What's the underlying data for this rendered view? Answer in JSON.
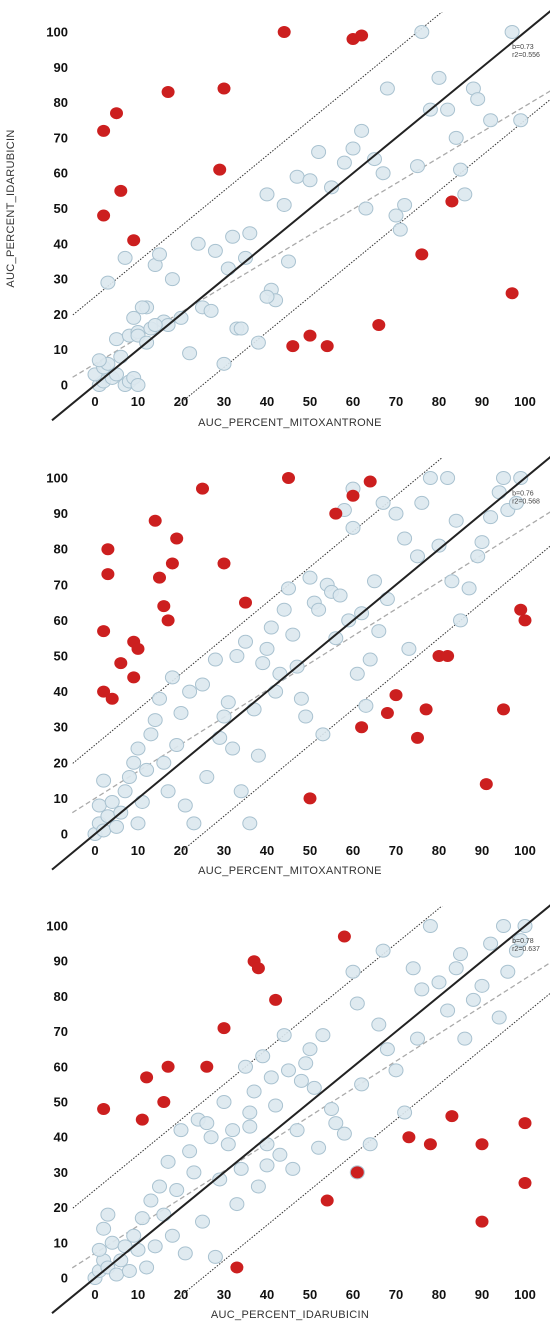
{
  "colors": {
    "normal_point_fill": "#dce8ee",
    "normal_point_stroke": "#a9c2d0",
    "outlier_point_fill": "#cc1f1f",
    "identity_line": "#222222",
    "boundary_line": "#333333",
    "fit_line": "#aaaaaa"
  },
  "chart_data": [
    {
      "type": "scatter",
      "xlabel": "AUC_PERCENT_MITOXANTRONE",
      "ylabel": "AUC_PERCENT_IDARUBICIN",
      "xlim": [
        0,
        100
      ],
      "ylim": [
        0,
        100
      ],
      "xticks": [
        "0",
        "10",
        "20",
        "30",
        "40",
        "50",
        "60",
        "70",
        "80",
        "90",
        "100"
      ],
      "yticks": [
        "0",
        "10",
        "20",
        "30",
        "40",
        "50",
        "60",
        "70",
        "80",
        "90",
        "100"
      ],
      "annotation": [
        "b=0.73",
        "r2=0.556"
      ],
      "fit_line": {
        "slope": 0.73,
        "intercept": 6
      },
      "boundary_offset": 25,
      "normal_points": [
        [
          1,
          0
        ],
        [
          2,
          1
        ],
        [
          0,
          3
        ],
        [
          2,
          5
        ],
        [
          3,
          6
        ],
        [
          1,
          7
        ],
        [
          4,
          2
        ],
        [
          5,
          3
        ],
        [
          7,
          0
        ],
        [
          8,
          1
        ],
        [
          9,
          2
        ],
        [
          10,
          0
        ],
        [
          6,
          8
        ],
        [
          5,
          13
        ],
        [
          8,
          14
        ],
        [
          10,
          15
        ],
        [
          12,
          22
        ],
        [
          9,
          19
        ],
        [
          13,
          16
        ],
        [
          14,
          34
        ],
        [
          15,
          37
        ],
        [
          16,
          18
        ],
        [
          18,
          30
        ],
        [
          17,
          17
        ],
        [
          20,
          19
        ],
        [
          22,
          9
        ],
        [
          24,
          40
        ],
        [
          25,
          22
        ],
        [
          27,
          21
        ],
        [
          28,
          38
        ],
        [
          31,
          33
        ],
        [
          32,
          42
        ],
        [
          33,
          16
        ],
        [
          34,
          16
        ],
        [
          35,
          36
        ],
        [
          36,
          43
        ],
        [
          38,
          12
        ],
        [
          40,
          54
        ],
        [
          41,
          27
        ],
        [
          42,
          24
        ],
        [
          44,
          51
        ],
        [
          45,
          35
        ],
        [
          47,
          59
        ],
        [
          50,
          58
        ],
        [
          52,
          66
        ],
        [
          55,
          56
        ],
        [
          58,
          63
        ],
        [
          60,
          67
        ],
        [
          62,
          72
        ],
        [
          63,
          50
        ],
        [
          65,
          64
        ],
        [
          67,
          60
        ],
        [
          68,
          84
        ],
        [
          70,
          48
        ],
        [
          71,
          44
        ],
        [
          75,
          62
        ],
        [
          76,
          100
        ],
        [
          80,
          87
        ],
        [
          82,
          78
        ],
        [
          84,
          70
        ],
        [
          85,
          61
        ],
        [
          86,
          54
        ],
        [
          88,
          84
        ],
        [
          89,
          81
        ],
        [
          92,
          75
        ],
        [
          97,
          100
        ],
        [
          99,
          75
        ],
        [
          3,
          29
        ],
        [
          7,
          36
        ],
        [
          10,
          14
        ],
        [
          11,
          22
        ],
        [
          12,
          12
        ],
        [
          14,
          17
        ],
        [
          30,
          6
        ],
        [
          40,
          25
        ],
        [
          72,
          51
        ],
        [
          78,
          78
        ]
      ],
      "outlier_points": [
        [
          2,
          72
        ],
        [
          5,
          77
        ],
        [
          6,
          55
        ],
        [
          2,
          48
        ],
        [
          9,
          41
        ],
        [
          17,
          83
        ],
        [
          29,
          61
        ],
        [
          30,
          84
        ],
        [
          44,
          100
        ],
        [
          60,
          98
        ],
        [
          62,
          99
        ],
        [
          46,
          11
        ],
        [
          50,
          14
        ],
        [
          54,
          11
        ],
        [
          66,
          17
        ],
        [
          76,
          37
        ],
        [
          83,
          52
        ],
        [
          97,
          26
        ]
      ]
    },
    {
      "type": "scatter",
      "xlabel": "AUC_PERCENT_MITOXANTRONE",
      "ylabel": "",
      "xlim": [
        0,
        100
      ],
      "ylim": [
        0,
        100
      ],
      "xticks": [
        "0",
        "10",
        "20",
        "30",
        "40",
        "50",
        "60",
        "70",
        "80",
        "90",
        "100"
      ],
      "yticks": [
        "0",
        "10",
        "20",
        "30",
        "40",
        "50",
        "60",
        "70",
        "80",
        "90",
        "100"
      ],
      "annotation": [
        "b=0.76",
        "r2=0.568"
      ],
      "fit_line": {
        "slope": 0.76,
        "intercept": 10
      },
      "boundary_offset": 25,
      "normal_points": [
        [
          0,
          0
        ],
        [
          1,
          3
        ],
        [
          2,
          1
        ],
        [
          1,
          8
        ],
        [
          3,
          5
        ],
        [
          4,
          9
        ],
        [
          2,
          15
        ],
        [
          5,
          2
        ],
        [
          6,
          6
        ],
        [
          7,
          12
        ],
        [
          8,
          16
        ],
        [
          9,
          20
        ],
        [
          10,
          24
        ],
        [
          10,
          3
        ],
        [
          11,
          9
        ],
        [
          12,
          18
        ],
        [
          13,
          28
        ],
        [
          14,
          32
        ],
        [
          15,
          38
        ],
        [
          16,
          20
        ],
        [
          17,
          12
        ],
        [
          18,
          44
        ],
        [
          19,
          25
        ],
        [
          20,
          34
        ],
        [
          21,
          8
        ],
        [
          22,
          40
        ],
        [
          23,
          3
        ],
        [
          25,
          42
        ],
        [
          26,
          16
        ],
        [
          28,
          49
        ],
        [
          29,
          27
        ],
        [
          30,
          33
        ],
        [
          31,
          37
        ],
        [
          32,
          24
        ],
        [
          33,
          50
        ],
        [
          34,
          12
        ],
        [
          35,
          54
        ],
        [
          37,
          35
        ],
        [
          38,
          22
        ],
        [
          39,
          48
        ],
        [
          40,
          52
        ],
        [
          41,
          58
        ],
        [
          42,
          40
        ],
        [
          43,
          45
        ],
        [
          44,
          63
        ],
        [
          45,
          69
        ],
        [
          46,
          56
        ],
        [
          47,
          47
        ],
        [
          48,
          38
        ],
        [
          49,
          33
        ],
        [
          50,
          72
        ],
        [
          51,
          65
        ],
        [
          52,
          63
        ],
        [
          53,
          28
        ],
        [
          54,
          70
        ],
        [
          55,
          68
        ],
        [
          56,
          55
        ],
        [
          58,
          91
        ],
        [
          59,
          60
        ],
        [
          60,
          86
        ],
        [
          61,
          45
        ],
        [
          62,
          62
        ],
        [
          63,
          36
        ],
        [
          64,
          49
        ],
        [
          65,
          71
        ],
        [
          66,
          57
        ],
        [
          67,
          93
        ],
        [
          68,
          66
        ],
        [
          70,
          90
        ],
        [
          72,
          83
        ],
        [
          73,
          52
        ],
        [
          75,
          78
        ],
        [
          76,
          93
        ],
        [
          78,
          100
        ],
        [
          80,
          81
        ],
        [
          82,
          100
        ],
        [
          83,
          71
        ],
        [
          84,
          88
        ],
        [
          85,
          60
        ],
        [
          87,
          69
        ],
        [
          89,
          78
        ],
        [
          90,
          82
        ],
        [
          92,
          89
        ],
        [
          94,
          96
        ],
        [
          95,
          100
        ],
        [
          96,
          91
        ],
        [
          98,
          93
        ],
        [
          99,
          100
        ],
        [
          60,
          97
        ],
        [
          57,
          67
        ],
        [
          36,
          3
        ]
      ],
      "outlier_points": [
        [
          2,
          57
        ],
        [
          3,
          80
        ],
        [
          3,
          73
        ],
        [
          2,
          40
        ],
        [
          4,
          38
        ],
        [
          6,
          48
        ],
        [
          9,
          44
        ],
        [
          9,
          54
        ],
        [
          10,
          52
        ],
        [
          14,
          88
        ],
        [
          15,
          72
        ],
        [
          16,
          64
        ],
        [
          17,
          60
        ],
        [
          18,
          76
        ],
        [
          19,
          83
        ],
        [
          25,
          97
        ],
        [
          30,
          76
        ],
        [
          35,
          65
        ],
        [
          45,
          100
        ],
        [
          50,
          10
        ],
        [
          56,
          90
        ],
        [
          60,
          95
        ],
        [
          64,
          99
        ],
        [
          62,
          30
        ],
        [
          68,
          34
        ],
        [
          70,
          39
        ],
        [
          75,
          27
        ],
        [
          77,
          35
        ],
        [
          80,
          50
        ],
        [
          82,
          50
        ],
        [
          91,
          14
        ],
        [
          95,
          35
        ],
        [
          99,
          63
        ],
        [
          100,
          60
        ]
      ]
    },
    {
      "type": "scatter",
      "xlabel": "AUC_PERCENT_IDARUBICIN",
      "ylabel": "",
      "xlim": [
        0,
        100
      ],
      "ylim": [
        0,
        100
      ],
      "xticks": [
        "0",
        "10",
        "20",
        "30",
        "40",
        "50",
        "60",
        "70",
        "80",
        "90",
        "100"
      ],
      "yticks": [
        "0",
        "10",
        "20",
        "30",
        "40",
        "50",
        "60",
        "70",
        "80",
        "90",
        "100"
      ],
      "annotation": [
        "b=0.78",
        "r2=0.637"
      ],
      "fit_line": {
        "slope": 0.78,
        "intercept": 7
      },
      "boundary_offset": 25,
      "normal_points": [
        [
          0,
          0
        ],
        [
          1,
          2
        ],
        [
          2,
          5
        ],
        [
          1,
          8
        ],
        [
          3,
          3
        ],
        [
          4,
          10
        ],
        [
          5,
          1
        ],
        [
          2,
          14
        ],
        [
          3,
          18
        ],
        [
          6,
          5
        ],
        [
          7,
          9
        ],
        [
          8,
          2
        ],
        [
          9,
          12
        ],
        [
          10,
          8
        ],
        [
          11,
          17
        ],
        [
          12,
          3
        ],
        [
          13,
          22
        ],
        [
          14,
          9
        ],
        [
          15,
          26
        ],
        [
          16,
          18
        ],
        [
          17,
          33
        ],
        [
          18,
          12
        ],
        [
          19,
          25
        ],
        [
          20,
          42
        ],
        [
          21,
          7
        ],
        [
          22,
          36
        ],
        [
          23,
          30
        ],
        [
          24,
          45
        ],
        [
          25,
          16
        ],
        [
          26,
          44
        ],
        [
          27,
          40
        ],
        [
          28,
          6
        ],
        [
          29,
          28
        ],
        [
          30,
          50
        ],
        [
          31,
          38
        ],
        [
          32,
          42
        ],
        [
          33,
          21
        ],
        [
          34,
          31
        ],
        [
          35,
          60
        ],
        [
          36,
          47
        ],
        [
          37,
          53
        ],
        [
          38,
          26
        ],
        [
          39,
          63
        ],
        [
          40,
          38
        ],
        [
          41,
          57
        ],
        [
          42,
          49
        ],
        [
          43,
          35
        ],
        [
          44,
          69
        ],
        [
          45,
          59
        ],
        [
          46,
          31
        ],
        [
          47,
          42
        ],
        [
          48,
          56
        ],
        [
          49,
          61
        ],
        [
          50,
          65
        ],
        [
          51,
          54
        ],
        [
          52,
          37
        ],
        [
          53,
          69
        ],
        [
          55,
          48
        ],
        [
          56,
          44
        ],
        [
          58,
          41
        ],
        [
          60,
          87
        ],
        [
          61,
          78
        ],
        [
          62,
          55
        ],
        [
          64,
          38
        ],
        [
          66,
          72
        ],
        [
          67,
          93
        ],
        [
          68,
          65
        ],
        [
          70,
          59
        ],
        [
          72,
          47
        ],
        [
          74,
          88
        ],
        [
          75,
          68
        ],
        [
          76,
          82
        ],
        [
          78,
          100
        ],
        [
          80,
          84
        ],
        [
          82,
          76
        ],
        [
          84,
          88
        ],
        [
          85,
          92
        ],
        [
          86,
          68
        ],
        [
          88,
          79
        ],
        [
          90,
          83
        ],
        [
          92,
          95
        ],
        [
          94,
          74
        ],
        [
          95,
          100
        ],
        [
          96,
          87
        ],
        [
          98,
          93
        ],
        [
          99,
          96
        ],
        [
          100,
          100
        ],
        [
          36,
          43
        ],
        [
          61,
          30
        ],
        [
          40,
          32
        ]
      ],
      "outlier_points": [
        [
          2,
          48
        ],
        [
          11,
          45
        ],
        [
          12,
          57
        ],
        [
          16,
          50
        ],
        [
          17,
          60
        ],
        [
          26,
          60
        ],
        [
          30,
          71
        ],
        [
          37,
          90
        ],
        [
          38,
          88
        ],
        [
          42,
          79
        ],
        [
          33,
          3
        ],
        [
          54,
          22
        ],
        [
          58,
          97
        ],
        [
          61,
          30
        ],
        [
          73,
          40
        ],
        [
          78,
          38
        ],
        [
          83,
          46
        ],
        [
          90,
          38
        ],
        [
          90,
          16
        ],
        [
          100,
          44
        ],
        [
          100,
          27
        ]
      ]
    }
  ]
}
